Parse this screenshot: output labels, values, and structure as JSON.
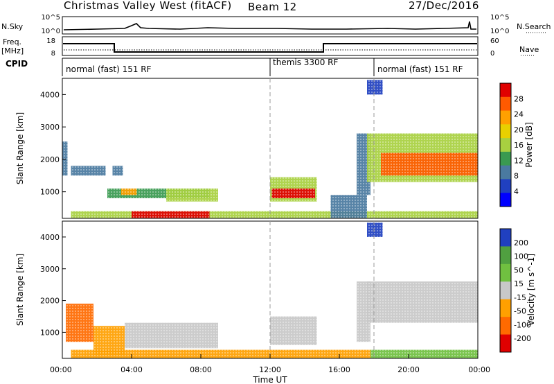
{
  "header": {
    "site": "Christmas Valley West (fitACF)",
    "beam": "Beam 12",
    "date": "27/Dec/2016"
  },
  "strips": {
    "nsky_label": "N.Sky",
    "nsky_ticks": [
      "10^5",
      "10^0"
    ],
    "nsearch_label": "N.Search",
    "nsearch_ticks": [
      "10^5",
      "10^0"
    ],
    "freq_label": "Freq.",
    "freq_unit": "[MHz]",
    "freq_ticks": [
      "18",
      "8"
    ],
    "nave_label": "Nave",
    "nave_ticks": [
      "60",
      "0"
    ],
    "cpid_label": "CPID",
    "cpid_segments": [
      {
        "label": "normal (fast) 151 RF",
        "start": 0,
        "end": 12
      },
      {
        "label": "themis 3300 RF",
        "start": 12,
        "end": 18
      },
      {
        "label": "normal (fast) 151 RF",
        "start": 18,
        "end": 24
      }
    ]
  },
  "chart_data": [
    {
      "type": "heatmap",
      "name": "power-panel",
      "ylabel": "Slant Range [km]",
      "yticks": [
        "4000",
        "3000",
        "2000",
        "1000"
      ],
      "ylim": [
        180,
        4500
      ],
      "colorbar_label": "Power [dB]",
      "colorbar_ticks": [
        "28",
        "24",
        "20",
        "16",
        "12",
        "8",
        "4"
      ],
      "colorbar_colors": [
        "#e00000",
        "#ff5a00",
        "#ffa000",
        "#e8d000",
        "#a8d040",
        "#3a9a50",
        "#4a7aa0",
        "#2040c0",
        "#0000ff"
      ],
      "regions": [
        {
          "t": [
            0,
            0.3
          ],
          "r": [
            1500,
            2550
          ],
          "value": 8
        },
        {
          "t": [
            0.5,
            2.5
          ],
          "r": [
            1500,
            1800
          ],
          "value": 10
        },
        {
          "t": [
            2.9,
            3.5
          ],
          "r": [
            1500,
            1800
          ],
          "value": 9
        },
        {
          "t": [
            2.6,
            8.5
          ],
          "r": [
            800,
            1100
          ],
          "value": 12
        },
        {
          "t": [
            3.4,
            4.3
          ],
          "r": [
            900,
            1100
          ],
          "value": 22
        },
        {
          "t": [
            6.0,
            9.0
          ],
          "r": [
            700,
            1100
          ],
          "value": 16
        },
        {
          "t": [
            12.0,
            14.7
          ],
          "r": [
            700,
            1450
          ],
          "value": 14
        },
        {
          "t": [
            12.1,
            14.6
          ],
          "r": [
            800,
            1100
          ],
          "value": 26
        },
        {
          "t": [
            0.5,
            24
          ],
          "r": [
            180,
            400
          ],
          "value": 14
        },
        {
          "t": [
            4.0,
            8.5
          ],
          "r": [
            180,
            400
          ],
          "value": 28
        },
        {
          "t": [
            15.5,
            17.6
          ],
          "r": [
            180,
            900
          ],
          "value": 10
        },
        {
          "t": [
            17.0,
            17.8
          ],
          "r": [
            900,
            2800
          ],
          "value": 8
        },
        {
          "t": [
            17.6,
            24
          ],
          "r": [
            1300,
            2800
          ],
          "value": 14
        },
        {
          "t": [
            18.4,
            24
          ],
          "r": [
            1500,
            2200
          ],
          "value": 24
        },
        {
          "t": [
            17.6,
            18.5
          ],
          "r": [
            4000,
            4450
          ],
          "value": 6
        }
      ]
    },
    {
      "type": "heatmap",
      "name": "velocity-panel",
      "ylabel": "Slant Range [km]",
      "yticks": [
        "4000",
        "3000",
        "2000",
        "1000"
      ],
      "ylim": [
        180,
        4500
      ],
      "colorbar_label": "Velocity [m s^-1]",
      "colorbar_ticks": [
        "200",
        "100",
        "50",
        "15",
        "-15",
        "-50",
        "-100",
        "-200"
      ],
      "colorbar_colors": [
        "#2040c0",
        "#50a040",
        "#70c040",
        "#c8c8c8",
        "#ffa000",
        "#ff6a00",
        "#e00000"
      ],
      "regions": [
        {
          "t": [
            0.2,
            1.8
          ],
          "r": [
            700,
            1900
          ],
          "value": -50
        },
        {
          "t": [
            1.8,
            3.6
          ],
          "r": [
            300,
            1200
          ],
          "value": -30
        },
        {
          "t": [
            3.6,
            9.0
          ],
          "r": [
            500,
            1300
          ],
          "value": 0
        },
        {
          "t": [
            12.0,
            14.7
          ],
          "r": [
            600,
            1500
          ],
          "value": 0
        },
        {
          "t": [
            0.5,
            17.8
          ],
          "r": [
            180,
            450
          ],
          "value": -30
        },
        {
          "t": [
            17.8,
            24
          ],
          "r": [
            180,
            450
          ],
          "value": 40
        },
        {
          "t": [
            17.0,
            17.8
          ],
          "r": [
            700,
            2600
          ],
          "value": 0
        },
        {
          "t": [
            17.6,
            24
          ],
          "r": [
            1300,
            2600
          ],
          "value": 0
        },
        {
          "t": [
            17.6,
            18.5
          ],
          "r": [
            4000,
            4450
          ],
          "value": 220
        }
      ]
    }
  ],
  "xaxis": {
    "label": "Time UT",
    "ticks": [
      "00:00",
      "04:00",
      "08:00",
      "12:00",
      "16:00",
      "20:00",
      "00:00"
    ]
  }
}
